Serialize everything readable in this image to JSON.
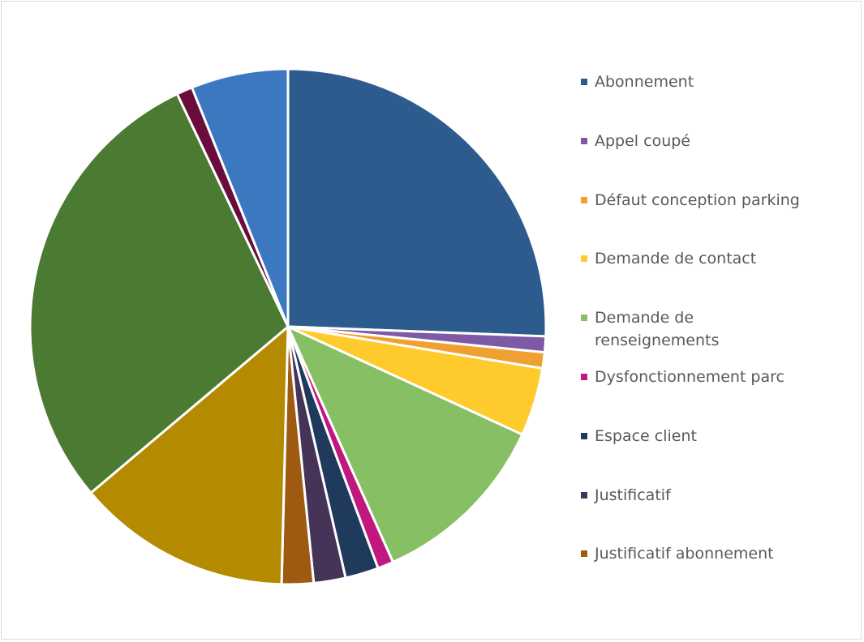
{
  "chart_data": {
    "type": "pie",
    "categories": [
      "Abonnement",
      "Appel coupé",
      "Défaut conception parking",
      "Demande de contact",
      "Demande de renseignements",
      "Dysfonctionnement parc",
      "Espace client",
      "Justificatif",
      "Justificatif abonnement",
      null,
      null,
      null,
      null
    ],
    "values": [
      25.7,
      1,
      1,
      4.3,
      11.5,
      1,
      2.1,
      2,
      2,
      13.5,
      29.2,
      1,
      6.1
    ],
    "colors": [
      "#2e5b8e",
      "#7e5aa6",
      "#f0a030",
      "#ffca2c",
      "#86bf64",
      "#c0187f",
      "#1f3a5c",
      "#463458",
      "#9e5a10",
      "#b38a00",
      "#4b7a32",
      "#6a0c3c",
      "#3b78c0"
    ],
    "legend": "right"
  }
}
